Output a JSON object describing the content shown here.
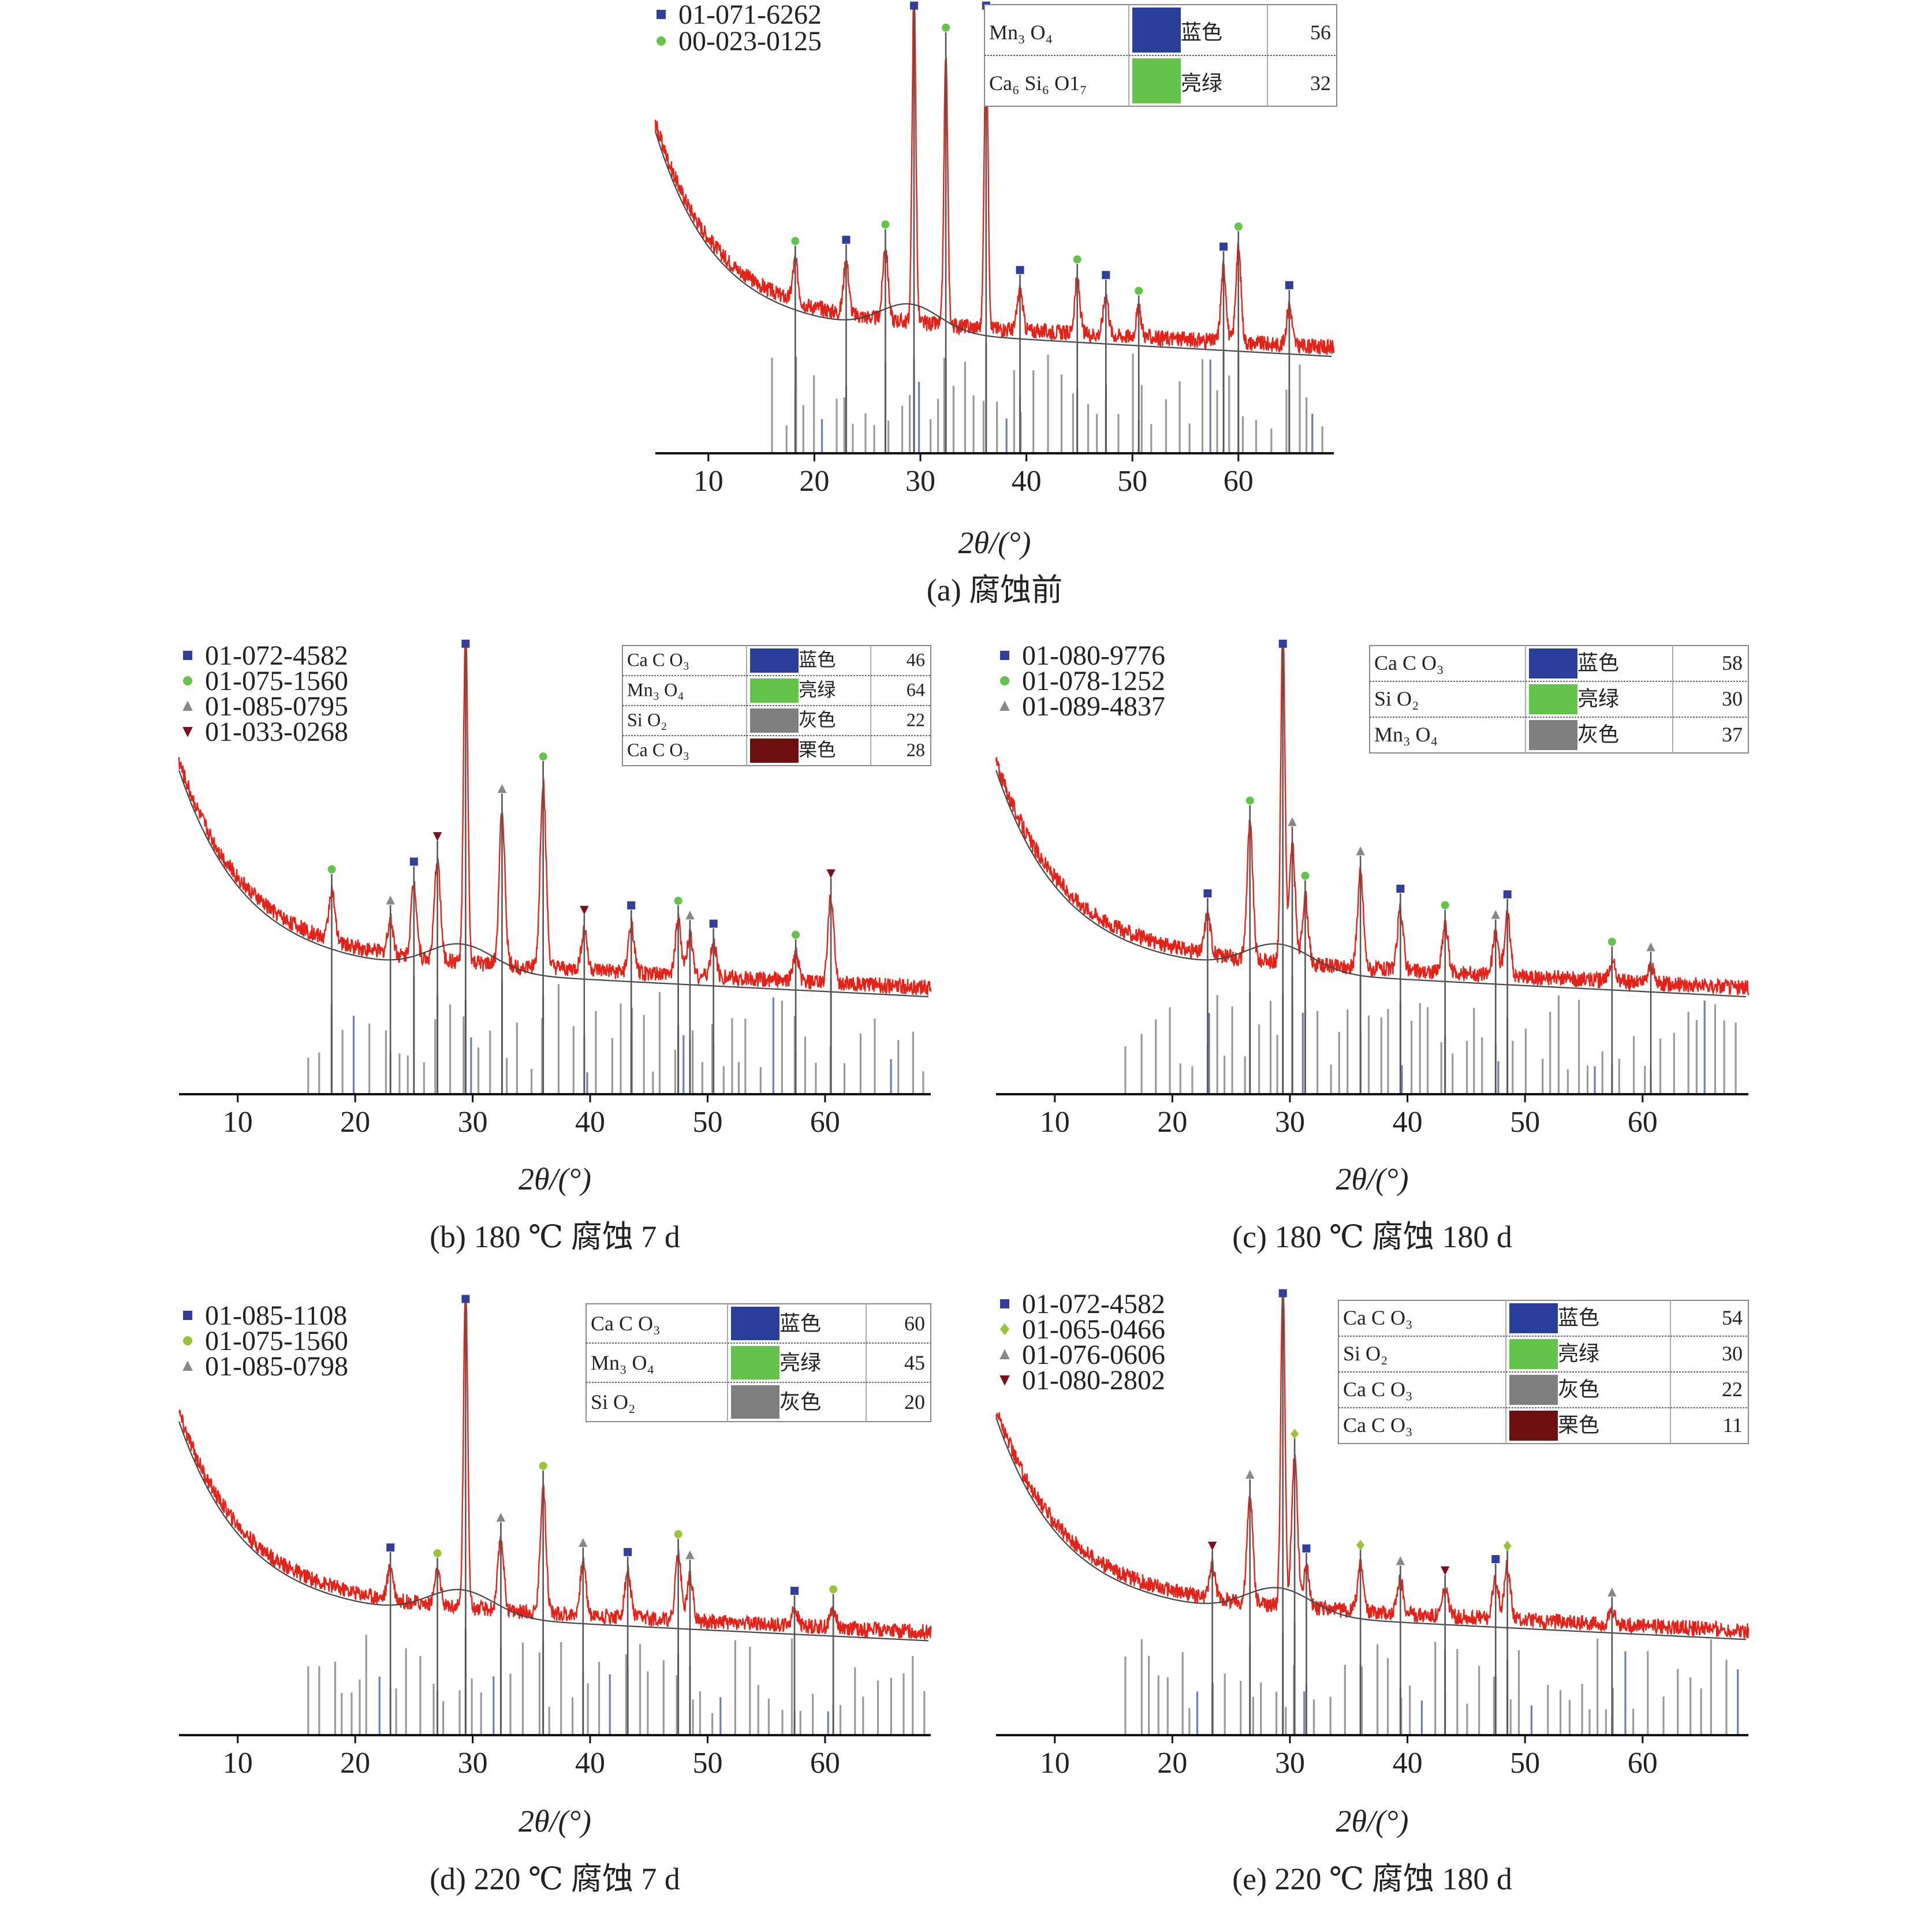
{
  "panels": [
    {
      "caption": "(a) 腐蚀前",
      "xlabel": "2θ/(°)",
      "xlim": [
        5,
        69
      ],
      "xticks": [
        10,
        20,
        30,
        40,
        50,
        60
      ],
      "codes": [
        {
          "code": "01-071-6262",
          "marker": "square",
          "color": "#2f3f9a"
        },
        {
          "code": "00-023-0125",
          "marker": "circle",
          "color": "#63c34a"
        }
      ],
      "table": [
        {
          "phase": "Mn₃ O₄",
          "color_name": "蓝色",
          "color": "#2a3f99",
          "score": "56"
        },
        {
          "phase": "Ca₆ Si₆ O1₇",
          "color_name": "亮绿",
          "color": "#63c34a",
          "score": "32"
        }
      ],
      "peaks": [
        {
          "x": 29.4,
          "h": 1.0
        },
        {
          "x": 32.4,
          "h": 0.8
        },
        {
          "x": 36.2,
          "h": 0.9
        },
        {
          "x": 26.7,
          "h": 0.22
        },
        {
          "x": 23.0,
          "h": 0.16
        },
        {
          "x": 18.2,
          "h": 0.12
        },
        {
          "x": 39.4,
          "h": 0.12
        },
        {
          "x": 44.8,
          "h": 0.16
        },
        {
          "x": 47.5,
          "h": 0.12
        },
        {
          "x": 50.6,
          "h": 0.08
        },
        {
          "x": 58.6,
          "h": 0.22
        },
        {
          "x": 60.0,
          "h": 0.28
        },
        {
          "x": 64.8,
          "h": 0.12
        }
      ]
    },
    {
      "caption": "(b) 180 ℃ 腐蚀 7 d",
      "xlabel": "2θ/(°)",
      "xlim": [
        5,
        69
      ],
      "xticks": [
        10,
        20,
        30,
        40,
        50,
        60
      ],
      "codes": [
        {
          "code": "01-072-4582",
          "marker": "square",
          "color": "#2f3f9a"
        },
        {
          "code": "01-075-1560",
          "marker": "circle",
          "color": "#63c34a"
        },
        {
          "code": "01-085-0795",
          "marker": "triangle",
          "color": "#888888"
        },
        {
          "code": "01-033-0268",
          "marker": "tri-down",
          "color": "#7a1020"
        }
      ],
      "table": [
        {
          "phase": "Ca C O₃",
          "color_name": "蓝色",
          "color": "#2a3f99",
          "score": "46"
        },
        {
          "phase": "Mn₃ O₄",
          "color_name": "亮绿",
          "color": "#63c34a",
          "score": "64"
        },
        {
          "phase": "Si O₂",
          "color_name": "灰色",
          "color": "#7f7f7f",
          "score": "22"
        },
        {
          "phase": "Ca C O₃",
          "color_name": "栗色",
          "color": "#6e1010",
          "score": "28"
        }
      ],
      "peaks": [
        {
          "x": 29.4,
          "h": 1.0
        },
        {
          "x": 36.0,
          "h": 0.55
        },
        {
          "x": 32.5,
          "h": 0.45
        },
        {
          "x": 27.0,
          "h": 0.3
        },
        {
          "x": 25.0,
          "h": 0.22
        },
        {
          "x": 18.0,
          "h": 0.15
        },
        {
          "x": 23.0,
          "h": 0.1
        },
        {
          "x": 39.5,
          "h": 0.12
        },
        {
          "x": 43.5,
          "h": 0.14
        },
        {
          "x": 47.5,
          "h": 0.16
        },
        {
          "x": 48.5,
          "h": 0.12
        },
        {
          "x": 60.5,
          "h": 0.26
        },
        {
          "x": 50.5,
          "h": 0.1
        },
        {
          "x": 57.5,
          "h": 0.08
        }
      ]
    },
    {
      "caption": "(c) 180 ℃ 腐蚀 180 d",
      "xlabel": "2θ/(°)",
      "xlim": [
        5,
        69
      ],
      "xticks": [
        10,
        20,
        30,
        40,
        50,
        60
      ],
      "codes": [
        {
          "code": "01-080-9776",
          "marker": "square",
          "color": "#2f3f9a"
        },
        {
          "code": "01-078-1252",
          "marker": "circle",
          "color": "#63c34a"
        },
        {
          "code": "01-089-4837",
          "marker": "triangle",
          "color": "#888888"
        }
      ],
      "table": [
        {
          "phase": "Ca C O₃",
          "color_name": "蓝色",
          "color": "#2a3f99",
          "score": "58"
        },
        {
          "phase": "Si O₂",
          "color_name": "亮绿",
          "color": "#63c34a",
          "score": "30"
        },
        {
          "phase": "Mn₃ O₄",
          "color_name": "灰色",
          "color": "#7f7f7f",
          "score": "37"
        }
      ],
      "peaks": [
        {
          "x": 29.4,
          "h": 1.0
        },
        {
          "x": 26.6,
          "h": 0.4
        },
        {
          "x": 30.2,
          "h": 0.35
        },
        {
          "x": 23.0,
          "h": 0.12
        },
        {
          "x": 31.3,
          "h": 0.2
        },
        {
          "x": 36.0,
          "h": 0.28
        },
        {
          "x": 39.4,
          "h": 0.18
        },
        {
          "x": 43.2,
          "h": 0.14
        },
        {
          "x": 47.5,
          "h": 0.12
        },
        {
          "x": 48.5,
          "h": 0.18
        },
        {
          "x": 57.4,
          "h": 0.06
        },
        {
          "x": 60.7,
          "h": 0.05
        }
      ]
    },
    {
      "caption": "(d) 220 ℃ 腐蚀 7 d",
      "xlabel": "2θ/(°)",
      "xlim": [
        5,
        69
      ],
      "xticks": [
        10,
        20,
        30,
        40,
        50,
        60
      ],
      "codes": [
        {
          "code": "01-085-1108",
          "marker": "square",
          "color": "#2f3f9a"
        },
        {
          "code": "01-075-1560",
          "marker": "circle",
          "color": "#9ac33a"
        },
        {
          "code": "01-085-0798",
          "marker": "triangle",
          "color": "#888888"
        }
      ],
      "table": [
        {
          "phase": "Ca C O₃",
          "color_name": "蓝色",
          "color": "#2a3f99",
          "score": "60"
        },
        {
          "phase": "Mn₃ O₄",
          "color_name": "亮绿",
          "color": "#63c34a",
          "score": "45"
        },
        {
          "phase": "Si O₂",
          "color_name": "灰色",
          "color": "#7f7f7f",
          "score": "20"
        }
      ],
      "peaks": [
        {
          "x": 29.4,
          "h": 1.0
        },
        {
          "x": 36.0,
          "h": 0.38
        },
        {
          "x": 32.4,
          "h": 0.22
        },
        {
          "x": 23.0,
          "h": 0.1
        },
        {
          "x": 27.0,
          "h": 0.1
        },
        {
          "x": 39.4,
          "h": 0.16
        },
        {
          "x": 43.2,
          "h": 0.14
        },
        {
          "x": 47.5,
          "h": 0.2
        },
        {
          "x": 48.5,
          "h": 0.14
        },
        {
          "x": 57.4,
          "h": 0.05
        },
        {
          "x": 60.7,
          "h": 0.06
        }
      ]
    },
    {
      "caption": "(e) 220 ℃ 腐蚀 180 d",
      "xlabel": "2θ/(°)",
      "xlim": [
        5,
        69
      ],
      "xticks": [
        10,
        20,
        30,
        40,
        50,
        60
      ],
      "codes": [
        {
          "code": "01-072-4582",
          "marker": "square",
          "color": "#2f3f9a"
        },
        {
          "code": "01-065-0466",
          "marker": "diamond",
          "color": "#9ac33a"
        },
        {
          "code": "01-076-0606",
          "marker": "triangle",
          "color": "#888888"
        },
        {
          "code": "01-080-2802",
          "marker": "tri-down",
          "color": "#7a1020"
        }
      ],
      "table": [
        {
          "phase": "Ca C O₃",
          "color_name": "蓝色",
          "color": "#2a3f99",
          "score": "54"
        },
        {
          "phase": "Si O₂",
          "color_name": "亮绿",
          "color": "#63c34a",
          "score": "30"
        },
        {
          "phase": "Ca C O₃",
          "color_name": "灰色",
          "color": "#7f7f7f",
          "score": "22"
        },
        {
          "phase": "Ca C O₃",
          "color_name": "栗色",
          "color": "#6e1010",
          "score": "11"
        }
      ],
      "peaks": [
        {
          "x": 29.4,
          "h": 1.0
        },
        {
          "x": 30.4,
          "h": 0.45
        },
        {
          "x": 26.6,
          "h": 0.32
        },
        {
          "x": 23.4,
          "h": 0.1
        },
        {
          "x": 31.4,
          "h": 0.12
        },
        {
          "x": 36.0,
          "h": 0.14
        },
        {
          "x": 39.4,
          "h": 0.1
        },
        {
          "x": 43.2,
          "h": 0.08
        },
        {
          "x": 47.5,
          "h": 0.12
        },
        {
          "x": 48.5,
          "h": 0.16
        },
        {
          "x": 57.4,
          "h": 0.04
        }
      ]
    }
  ]
}
